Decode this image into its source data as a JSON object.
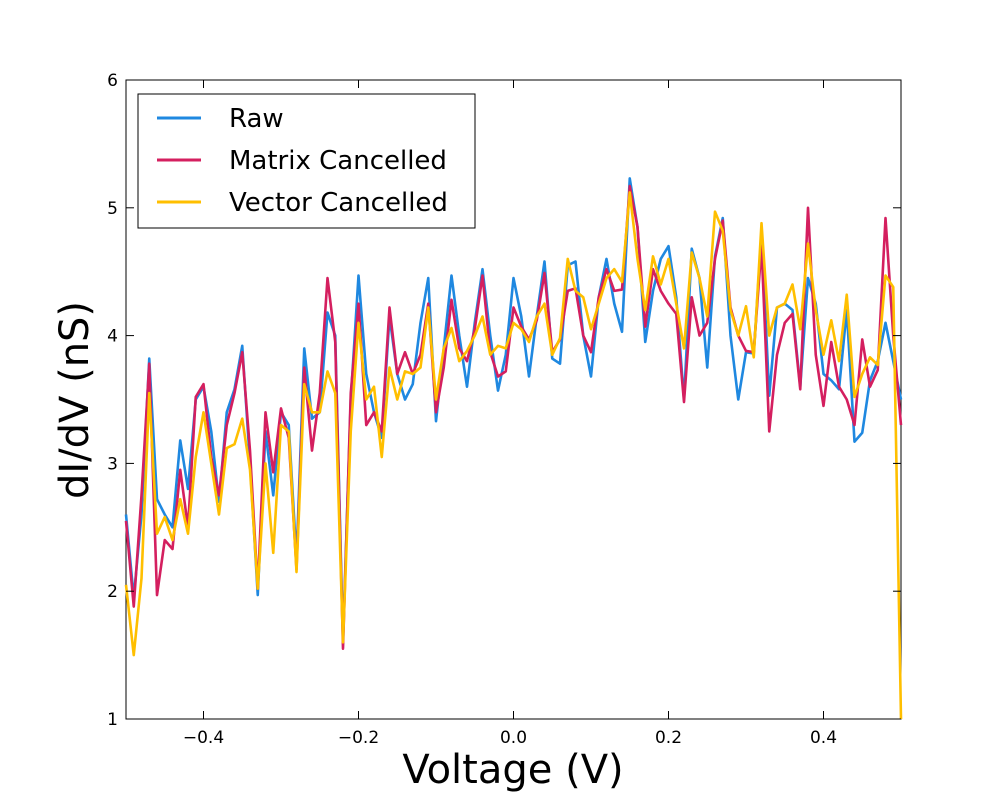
{
  "chart_data": {
    "type": "line",
    "title": "",
    "xlabel": "Voltage (V)",
    "ylabel": "dI/dV (nS)",
    "xlim": [
      -0.5,
      0.5
    ],
    "ylim": [
      1,
      6
    ],
    "xticks": [
      -0.4,
      -0.2,
      0.0,
      0.2,
      0.4
    ],
    "xtick_labels": [
      "−0.4",
      "−0.2",
      "0.0",
      "0.2",
      "0.4"
    ],
    "yticks": [
      1,
      2,
      3,
      4,
      5,
      6
    ],
    "ytick_labels": [
      "1",
      "2",
      "3",
      "4",
      "5",
      "6"
    ],
    "grid": false,
    "legend_position": "top-left",
    "x": [
      -0.5,
      -0.49,
      -0.48,
      -0.47,
      -0.46,
      -0.45,
      -0.44,
      -0.43,
      -0.42,
      -0.41,
      -0.4,
      -0.39,
      -0.38,
      -0.37,
      -0.36,
      -0.35,
      -0.34,
      -0.33,
      -0.32,
      -0.31,
      -0.3,
      -0.29,
      -0.28,
      -0.27,
      -0.26,
      -0.25,
      -0.24,
      -0.23,
      -0.22,
      -0.21,
      -0.2,
      -0.19,
      -0.18,
      -0.17,
      -0.16,
      -0.15,
      -0.14,
      -0.13,
      -0.12,
      -0.11,
      -0.1,
      -0.09,
      -0.08,
      -0.07,
      -0.06,
      -0.05,
      -0.04,
      -0.03,
      -0.02,
      -0.01,
      0.0,
      0.01,
      0.02,
      0.03,
      0.04,
      0.05,
      0.06,
      0.07,
      0.08,
      0.09,
      0.1,
      0.11,
      0.12,
      0.13,
      0.14,
      0.15,
      0.16,
      0.17,
      0.18,
      0.19,
      0.2,
      0.21,
      0.22,
      0.23,
      0.24,
      0.25,
      0.26,
      0.27,
      0.28,
      0.29,
      0.3,
      0.31,
      0.32,
      0.33,
      0.34,
      0.35,
      0.36,
      0.37,
      0.38,
      0.39,
      0.4,
      0.41,
      0.42,
      0.43,
      0.44,
      0.45,
      0.46,
      0.47,
      0.48,
      0.49,
      0.5
    ],
    "series": [
      {
        "name": "Raw",
        "color": "#1f88e0",
        "values": [
          2.6,
          1.95,
          2.6,
          3.82,
          2.72,
          2.6,
          2.5,
          3.18,
          2.8,
          3.5,
          3.6,
          3.25,
          2.7,
          3.4,
          3.58,
          3.92,
          3.0,
          1.97,
          3.25,
          2.75,
          3.4,
          3.3,
          2.25,
          3.9,
          3.35,
          3.4,
          4.18,
          4.0,
          1.62,
          3.5,
          4.47,
          3.7,
          3.4,
          3.2,
          4.15,
          3.7,
          3.5,
          3.62,
          4.1,
          4.45,
          3.33,
          3.9,
          4.47,
          4.0,
          3.6,
          4.1,
          4.52,
          4.0,
          3.57,
          3.85,
          4.45,
          4.15,
          3.68,
          4.15,
          4.58,
          3.82,
          3.78,
          4.55,
          4.58,
          4.0,
          3.68,
          4.3,
          4.6,
          4.25,
          4.03,
          5.23,
          4.85,
          3.95,
          4.35,
          4.6,
          4.7,
          4.3,
          3.5,
          4.68,
          4.45,
          3.75,
          4.62,
          4.92,
          4.0,
          3.5,
          3.87,
          3.86,
          4.8,
          3.53,
          4.22,
          4.25,
          4.2,
          3.6,
          4.45,
          4.25,
          3.7,
          3.65,
          3.58,
          4.2,
          3.17,
          3.24,
          3.65,
          3.8,
          4.1,
          3.8,
          3.5
        ]
      },
      {
        "name": "Matrix Cancelled",
        "color": "#d41f5f",
        "values": [
          2.55,
          1.88,
          2.75,
          3.78,
          1.97,
          2.4,
          2.33,
          2.95,
          2.5,
          3.52,
          3.62,
          3.05,
          2.75,
          3.3,
          3.55,
          3.87,
          3.1,
          2.02,
          3.4,
          2.93,
          3.43,
          3.2,
          2.17,
          3.75,
          3.1,
          3.55,
          4.45,
          3.95,
          1.55,
          3.55,
          4.25,
          3.3,
          3.4,
          3.25,
          4.22,
          3.7,
          3.87,
          3.7,
          3.85,
          4.25,
          3.4,
          3.75,
          4.28,
          3.9,
          3.8,
          4.05,
          4.47,
          3.87,
          3.68,
          3.72,
          4.22,
          4.07,
          3.97,
          4.12,
          4.49,
          3.87,
          3.97,
          4.35,
          4.37,
          4.0,
          3.87,
          4.3,
          4.52,
          4.35,
          4.36,
          5.17,
          4.85,
          4.07,
          4.52,
          4.35,
          4.25,
          4.17,
          3.48,
          4.3,
          4.0,
          4.1,
          4.6,
          4.9,
          4.22,
          4.0,
          3.88,
          3.87,
          4.7,
          3.25,
          3.85,
          4.1,
          4.17,
          3.58,
          5.0,
          3.85,
          3.45,
          3.95,
          3.6,
          3.5,
          3.3,
          3.97,
          3.6,
          3.73,
          4.92,
          4.0,
          3.3
        ]
      },
      {
        "name": "Vector Cancelled",
        "color": "#ffbf00",
        "values": [
          2.05,
          1.5,
          2.1,
          3.55,
          2.45,
          2.58,
          2.4,
          2.72,
          2.45,
          3.05,
          3.4,
          3.0,
          2.6,
          3.12,
          3.15,
          3.35,
          2.95,
          2.02,
          3.0,
          2.3,
          3.3,
          3.25,
          2.15,
          3.62,
          3.4,
          3.4,
          3.72,
          3.55,
          1.6,
          3.25,
          4.1,
          3.5,
          3.6,
          3.05,
          3.75,
          3.5,
          3.72,
          3.7,
          3.75,
          4.22,
          3.5,
          3.9,
          4.06,
          3.8,
          3.88,
          4.0,
          4.15,
          3.85,
          3.92,
          3.9,
          4.1,
          4.05,
          3.95,
          4.15,
          4.25,
          3.85,
          3.98,
          4.6,
          4.35,
          4.3,
          4.05,
          4.25,
          4.45,
          4.52,
          4.42,
          5.12,
          4.6,
          4.2,
          4.62,
          4.4,
          4.6,
          4.25,
          3.9,
          4.65,
          4.45,
          4.15,
          4.97,
          4.82,
          4.2,
          4.0,
          4.23,
          3.83,
          4.88,
          4.0,
          4.22,
          4.25,
          4.4,
          4.05,
          4.72,
          4.2,
          3.85,
          4.12,
          3.8,
          4.32,
          3.52,
          3.7,
          3.83,
          3.77,
          4.47,
          4.38,
          1.0
        ]
      }
    ]
  }
}
